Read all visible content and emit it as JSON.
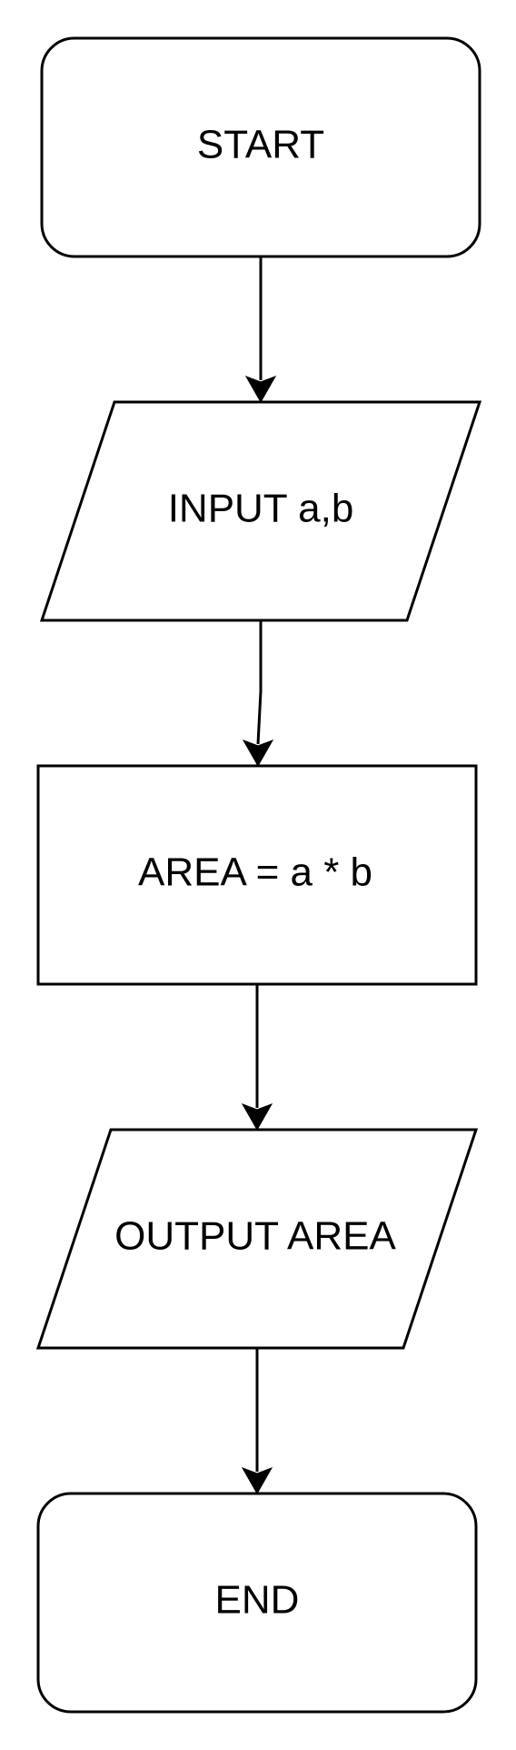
{
  "diagram": {
    "nodes": [
      {
        "id": "start",
        "shape": "terminator",
        "label": "START"
      },
      {
        "id": "input",
        "shape": "parallelogram",
        "label": "INPUT a,b"
      },
      {
        "id": "process",
        "shape": "rectangle",
        "label": "AREA = a * b"
      },
      {
        "id": "output",
        "shape": "parallelogram",
        "label": "OUTPUT AREA"
      },
      {
        "id": "end",
        "shape": "terminator",
        "label": "END"
      }
    ],
    "edges": [
      {
        "from": "start",
        "to": "input"
      },
      {
        "from": "input",
        "to": "process"
      },
      {
        "from": "process",
        "to": "output"
      },
      {
        "from": "output",
        "to": "end"
      }
    ]
  }
}
